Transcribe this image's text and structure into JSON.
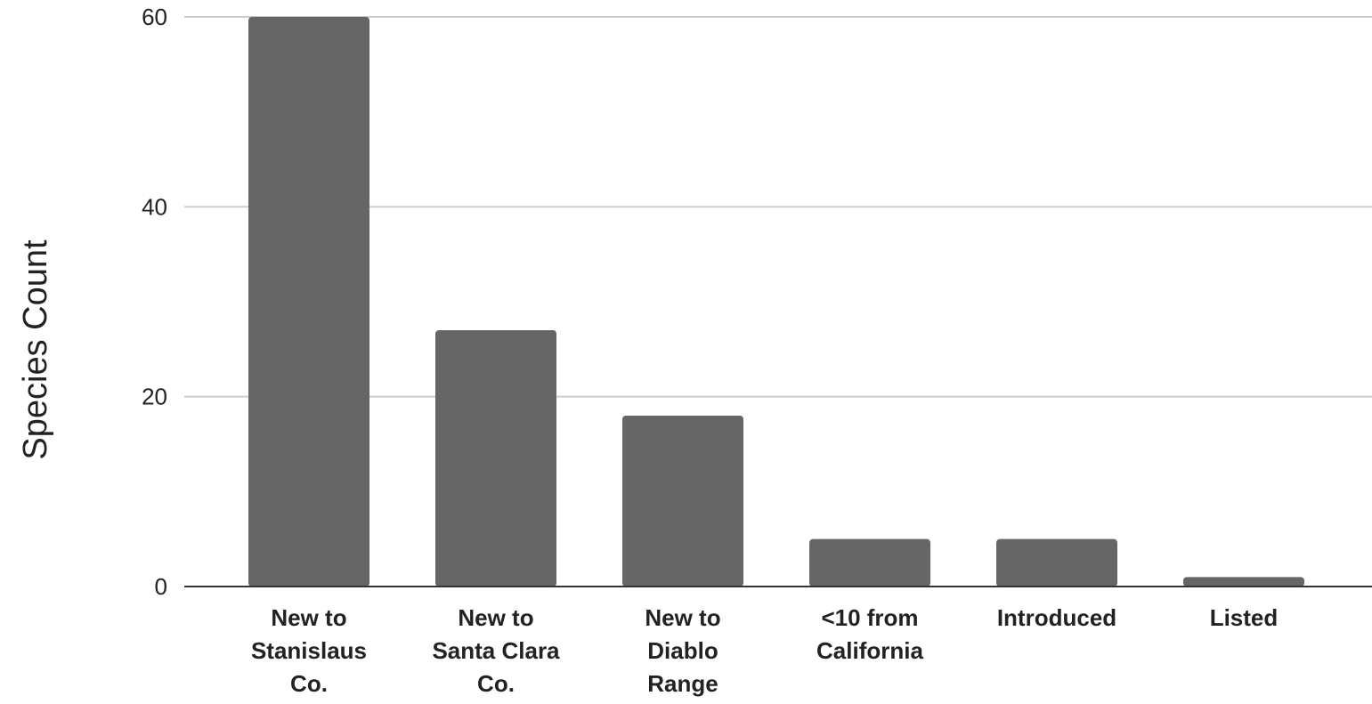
{
  "chart_data": {
    "type": "bar",
    "title": "",
    "xlabel": "",
    "ylabel": "Species Count",
    "ylim": [
      0,
      60
    ],
    "yticks": [
      0,
      20,
      40,
      60
    ],
    "grid": true,
    "legend": "none",
    "categories": [
      [
        "New to",
        "Stanislaus",
        "Co."
      ],
      [
        "New to",
        "Santa Clara",
        "Co."
      ],
      [
        "New to",
        "Diablo",
        "Range"
      ],
      [
        "<10 from",
        "California"
      ],
      [
        "Introduced"
      ],
      [
        "Listed"
      ]
    ],
    "values": [
      60,
      27,
      18,
      5,
      5,
      1
    ],
    "colors": {
      "bar": "#666666",
      "grid": "#cccccc",
      "axis": "#333333"
    }
  }
}
